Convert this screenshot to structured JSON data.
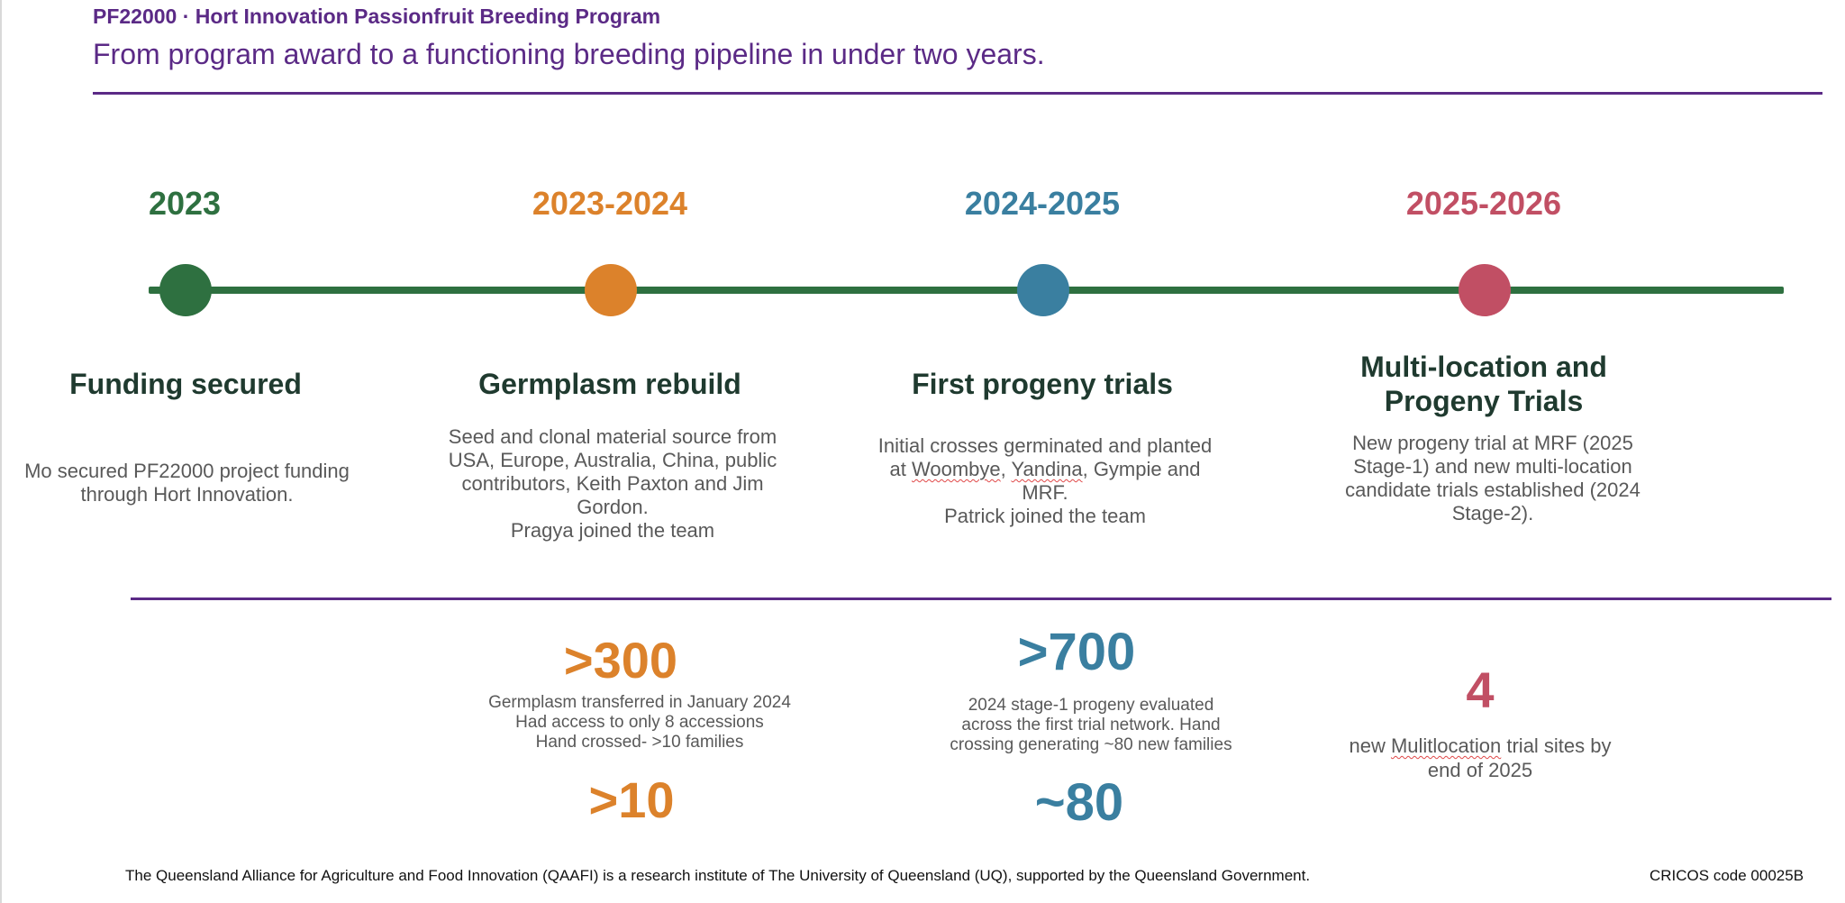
{
  "header": {
    "kicker": "PF22000 · Hort Innovation Passionfruit Breeding Program",
    "headline": "From program award to a functioning breeding pipeline in under two years."
  },
  "colors": {
    "purple": "#5b2a86",
    "green": "#2e7040",
    "orange": "#dc822b",
    "teal": "#3a7fa0",
    "pink": "#c14f64"
  },
  "timeline": [
    {
      "year": "2023",
      "title": "Funding secured",
      "desc": [
        "Mo secured PF22000 project funding",
        "through Hort Innovation."
      ]
    },
    {
      "year": "2023-2024",
      "title": "Germplasm rebuild",
      "desc": [
        "Seed and clonal material source from",
        "USA, Europe, Australia, China, public",
        "contributors, Keith Paxton and Jim",
        "Gordon.",
        "Pragya joined the team"
      ]
    },
    {
      "year": "2024-2025",
      "title": "First progeny trials",
      "desc": [
        "Initial crosses germinated and planted",
        "at Woombye, Yandina, Gympie and",
        "MRF.",
        "Patrick joined the team"
      ]
    },
    {
      "year": "2025-2026",
      "title_lines": [
        "Multi-location and",
        "Progeny Trials"
      ],
      "desc": [
        "New progeny trial at MRF (2025",
        "Stage-1) and new multi-location",
        "candidate trials established (2024",
        "Stage-2)."
      ]
    }
  ],
  "stats": {
    "germplasm": {
      "value": ">300",
      "desc": [
        "Germplasm transferred in January 2024",
        "Had access to only 8 accessions",
        "Hand crossed- >10 families"
      ],
      "secondary": ">10"
    },
    "progeny": {
      "value": ">700",
      "desc": [
        "2024 stage-1 progeny evaluated",
        "across the first trial network. Hand",
        "crossing generating ~80 new families"
      ],
      "secondary": "~80"
    },
    "sites": {
      "value": "4",
      "desc_line1_pre": "new ",
      "desc_line1_word": "Mulitlocation",
      "desc_line1_post": " trial sites by",
      "desc_line2": "end of 2025"
    }
  },
  "footer": {
    "left": "The Queensland Alliance for Agriculture and Food Innovation (QAAFI) is a research institute of The University of Queensland (UQ), supported by the Queensland Government.",
    "right": "CRICOS code 00025B"
  }
}
